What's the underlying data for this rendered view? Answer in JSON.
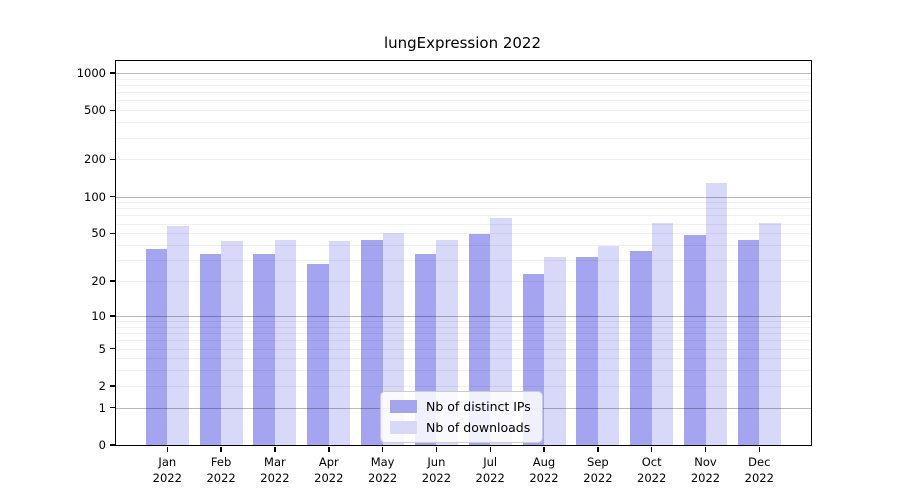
{
  "title": "lungExpression 2022",
  "legend": {
    "items": [
      {
        "label": "Nb of distinct IPs",
        "color": "#a4a4f0"
      },
      {
        "label": "Nb of downloads",
        "color": "#d8d8f8"
      }
    ]
  },
  "colors": {
    "distinct_ips_bar": "#a4a4f0",
    "downloads_bar": "#d8d8f8",
    "axis": "#000000"
  },
  "chart_data": {
    "type": "bar",
    "title": "lungExpression 2022",
    "categories": [
      "Jan",
      "Feb",
      "Mar",
      "Apr",
      "May",
      "Jun",
      "Jul",
      "Aug",
      "Sep",
      "Oct",
      "Nov",
      "Dec"
    ],
    "year": "2022",
    "series": [
      {
        "name": "Nb of distinct IPs",
        "values": [
          37,
          34,
          34,
          28,
          44,
          34,
          49,
          23,
          32,
          36,
          48,
          44
        ]
      },
      {
        "name": "Nb of downloads",
        "values": [
          57,
          43,
          44,
          43,
          50,
          44,
          67,
          32,
          39,
          61,
          129,
          61
        ]
      }
    ],
    "ylabel": "",
    "xlabel": "",
    "scale": "log1p",
    "yticks": [
      1000,
      500,
      200,
      100,
      50,
      20,
      10,
      5,
      2,
      1,
      0
    ],
    "ytick_labels": [
      "1000",
      "500",
      "200",
      "100",
      "50",
      "20",
      "10",
      "5",
      "2",
      "1",
      "0"
    ],
    "ylim": [
      0,
      1249
    ],
    "grid": true,
    "legend_position": "inside lower center"
  }
}
